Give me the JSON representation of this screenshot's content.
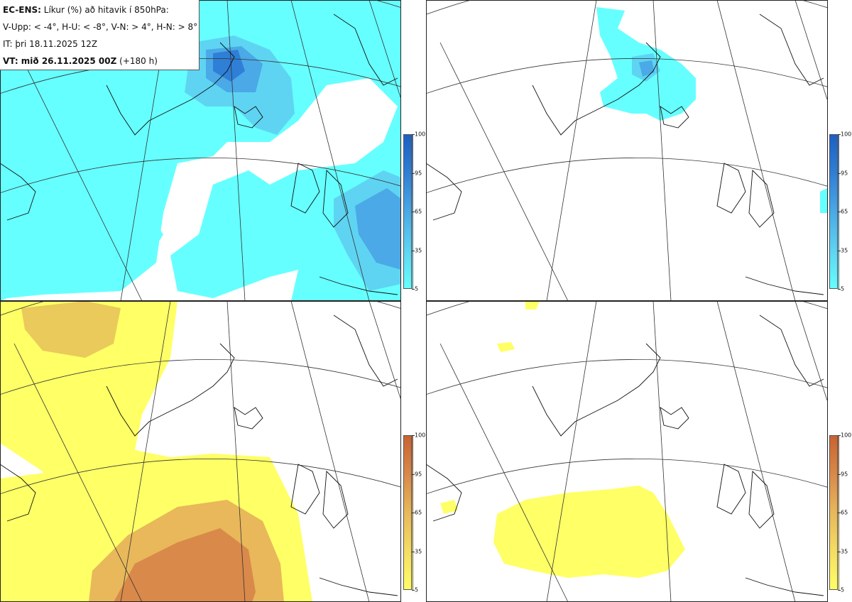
{
  "info": {
    "model": "EC-ENS:",
    "title": "Líkur (%) að hitavik í 850hPa:",
    "thresholds": "V-Upp: < -4°, H-U: < -8°, V-N: > 4°, H-N: > 8°",
    "initial": "IT: þri 18.11.2025 12Z",
    "valid_label": "VT: mið 26.11.2025 00Z",
    "valid_lead": "(+180 h)"
  },
  "colorbar_cold": {
    "ticks": [
      "5",
      "35",
      "65",
      "95",
      "100"
    ],
    "colors": [
      "#66ffff",
      "#5ed4f2",
      "#4aa9e6",
      "#2f7fd6",
      "#1c5fc2"
    ]
  },
  "colorbar_warm": {
    "ticks": [
      "5",
      "35",
      "65",
      "95",
      "100"
    ],
    "colors": [
      "#ffff66",
      "#f5dd63",
      "#e8b85a",
      "#d9894a",
      "#c9622f"
    ]
  },
  "panels": [
    {
      "id": "upper-left",
      "field": "cold-4"
    },
    {
      "id": "upper-right",
      "field": "cold-8"
    },
    {
      "id": "lower-left",
      "field": "warm-4"
    },
    {
      "id": "lower-right",
      "field": "warm-8"
    }
  ]
}
